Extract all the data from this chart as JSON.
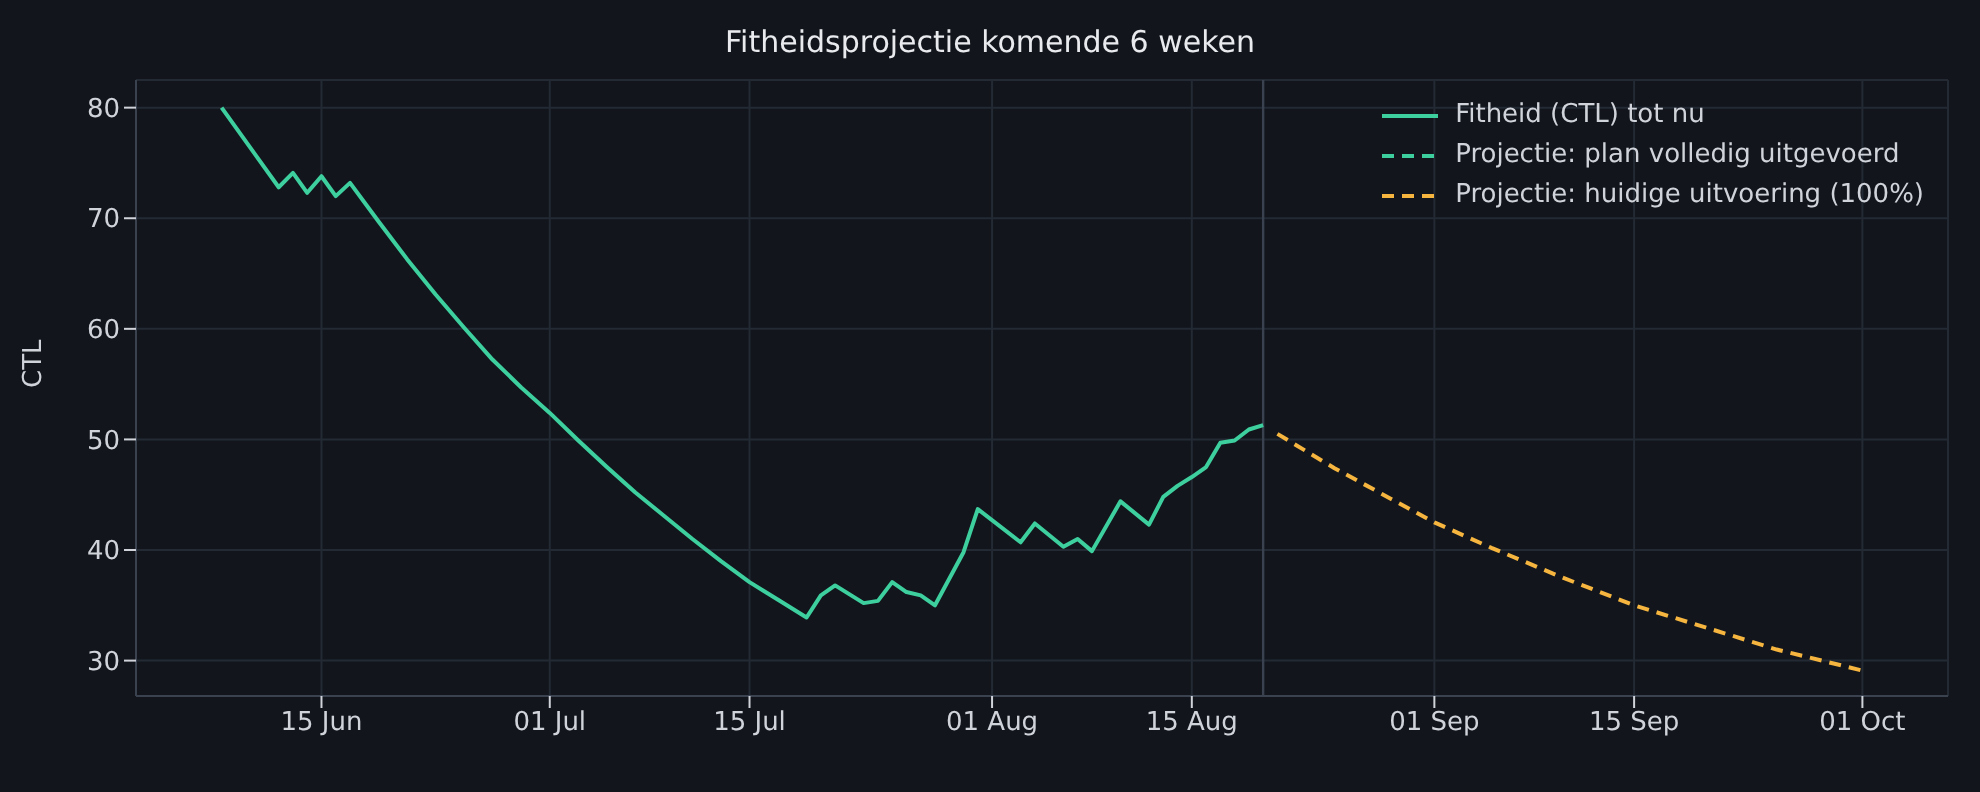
{
  "chart_data": {
    "type": "line",
    "title": "Fitheidsprojectie komende 6 weken",
    "ylabel": "CTL",
    "xlim": [
      "--06-02",
      "--10-07"
    ],
    "xticks": [
      {
        "value": "--06-15",
        "label": "15 Jun"
      },
      {
        "value": "--07-01",
        "label": "01 Jul"
      },
      {
        "value": "--07-15",
        "label": "15 Jul"
      },
      {
        "value": "--08-01",
        "label": "01 Aug"
      },
      {
        "value": "--08-15",
        "label": "15 Aug"
      },
      {
        "value": "--09-01",
        "label": "01 Sep"
      },
      {
        "value": "--09-15",
        "label": "15 Sep"
      },
      {
        "value": "--10-01",
        "label": "01 Oct"
      }
    ],
    "ylim": [
      26.8,
      82.5
    ],
    "yticks": [
      30,
      40,
      50,
      60,
      70,
      80
    ],
    "grid": true,
    "legend": "top right",
    "marker": "none",
    "series": [
      {
        "name": "Fitheid (CTL) tot nu",
        "color": "#3ecf9e",
        "line_style": "solid",
        "x": [
          "--06-08",
          "--06-12",
          "--06-13",
          "--06-14",
          "--06-15",
          "--06-16",
          "--06-17",
          "--06-19",
          "--06-21",
          "--06-23",
          "--06-25",
          "--06-27",
          "--06-29",
          "--07-01",
          "--07-03",
          "--07-05",
          "--07-07",
          "--07-09",
          "--07-11",
          "--07-13",
          "--07-15",
          "--07-17",
          "--07-19",
          "--07-20",
          "--07-21",
          "--07-23",
          "--07-24",
          "--07-25",
          "--07-26",
          "--07-27",
          "--07-28",
          "--07-30",
          "--07-31",
          "--08-03",
          "--08-04",
          "--08-06",
          "--08-07",
          "--08-08",
          "--08-10",
          "--08-12",
          "--08-13",
          "--08-14",
          "--08-15",
          "--08-16",
          "--08-17",
          "--08-18",
          "--08-19",
          "--08-20"
        ],
        "values": [
          80,
          72.8,
          74.1,
          72.3,
          73.8,
          72.0,
          73.2,
          69.7,
          66.3,
          63.1,
          60.1,
          57.2,
          54.7,
          52.4,
          49.9,
          47.5,
          45.2,
          43.1,
          41.0,
          39.0,
          37.1,
          35.5,
          33.9,
          35.9,
          36.8,
          35.2,
          35.4,
          37.1,
          36.2,
          35.9,
          35.0,
          39.8,
          43.7,
          40.7,
          42.4,
          40.3,
          41.0,
          39.9,
          44.4,
          42.3,
          44.8,
          45.8,
          46.6,
          47.5,
          49.7,
          49.9,
          50.9,
          51.3
        ]
      },
      {
        "name": "Projectie: plan volledig uitgevoerd",
        "color": "#3ecf9e",
        "line_style": "dashed"
      },
      {
        "name": "Projectie: huidige uitvoering (100%)",
        "color": "#f5b53f",
        "line_style": "dashed",
        "x": [
          "--08-21",
          "--08-25",
          "--08-29",
          "--09-01",
          "--09-05",
          "--09-10",
          "--09-15",
          "--09-20",
          "--09-25",
          "--10-01"
        ],
        "values": [
          50.5,
          47.4,
          44.6,
          42.5,
          40.2,
          37.5,
          35.0,
          33.0,
          31.0,
          29.1
        ]
      }
    ],
    "ref_lines": [
      {
        "axis": "x",
        "value": "--08-20",
        "color": "#3a4250"
      }
    ]
  }
}
